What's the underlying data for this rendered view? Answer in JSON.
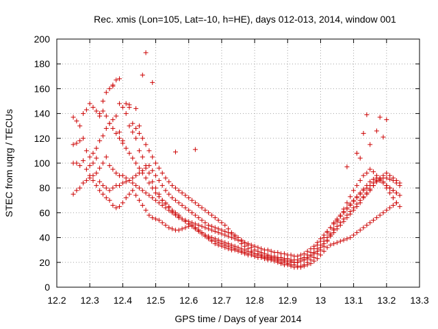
{
  "chart_data": {
    "type": "scatter",
    "title": "Rec. xmis (Lon=105, Lat=-10, h=HE), days 012-013, 2014, window 001",
    "xlabel": "GPS time / Days of year 2014",
    "ylabel": "STEC from uqrg / TECUs",
    "xlim": [
      12.2,
      13.3
    ],
    "ylim": [
      0,
      200
    ],
    "xticks": [
      "12.2",
      "12.3",
      "12.4",
      "12.5",
      "12.6",
      "12.7",
      "12.8",
      "12.9",
      "13",
      "13.1",
      "13.2",
      "13.3"
    ],
    "yticks": [
      "0",
      "20",
      "40",
      "60",
      "80",
      "100",
      "120",
      "140",
      "160",
      "180",
      "200"
    ],
    "grid": true,
    "marker": "+",
    "color": "#cc0000",
    "series": [
      {
        "x": [
          12.25,
          12.26,
          12.27,
          12.28,
          12.29,
          12.3,
          12.31,
          12.32,
          12.33,
          12.34,
          12.35,
          12.36,
          12.37,
          12.38,
          12.39,
          12.4,
          12.41,
          12.42,
          12.43,
          12.44,
          12.45,
          12.46,
          12.47,
          12.48,
          12.49,
          12.5,
          12.51,
          12.52,
          12.53,
          12.54,
          12.55,
          12.56,
          12.57,
          12.58,
          12.59,
          12.6,
          12.61,
          12.62,
          12.63,
          12.64,
          12.65,
          12.66,
          12.67,
          12.68,
          12.69,
          12.7,
          12.71,
          12.72,
          12.73,
          12.74,
          12.75,
          12.76,
          12.77,
          12.78,
          12.79,
          12.8,
          12.81,
          12.82,
          12.83,
          12.84,
          12.85,
          12.86,
          12.87,
          12.88,
          12.89,
          12.9,
          12.91,
          12.92,
          12.93,
          12.94,
          12.95,
          12.96,
          12.97,
          12.98,
          12.99,
          13.0,
          13.01,
          13.02,
          13.03,
          13.04,
          13.05,
          13.06,
          13.07,
          13.08,
          13.09,
          13.1,
          13.11,
          13.12,
          13.13,
          13.14,
          13.15,
          13.16,
          13.17,
          13.18,
          13.19,
          13.2,
          13.21,
          13.22,
          13.23,
          13.24
        ],
        "y": [
          137,
          134,
          130,
          140,
          143,
          148,
          145,
          142,
          138,
          150,
          157,
          160,
          163,
          167,
          148,
          145,
          140,
          130,
          125,
          120,
          110,
          105,
          98,
          92,
          85,
          80,
          75,
          70,
          68,
          65,
          62,
          60,
          58,
          55,
          53,
          51,
          49,
          47,
          45,
          43,
          41,
          39,
          37,
          35,
          34,
          33,
          32,
          31,
          30,
          30,
          29,
          28,
          27,
          26,
          26,
          25,
          24,
          24,
          23,
          23,
          22,
          22,
          21,
          20,
          20,
          19,
          18,
          18,
          17,
          17,
          18,
          20,
          22,
          24,
          27,
          30,
          33,
          37,
          42,
          47,
          53,
          58,
          63,
          68,
          73,
          78,
          82,
          86,
          90,
          92,
          95,
          93,
          90,
          88,
          85,
          82,
          80,
          78,
          76,
          74
        ]
      },
      {
        "x": [
          12.25,
          12.26,
          12.27,
          12.28,
          12.29,
          12.3,
          12.31,
          12.32,
          12.33,
          12.34,
          12.35,
          12.36,
          12.37,
          12.38,
          12.39,
          12.4,
          12.41,
          12.42,
          12.43,
          12.44,
          12.45,
          12.46,
          12.47,
          12.48,
          12.49,
          12.5,
          12.51,
          12.52,
          12.53,
          12.54,
          12.55,
          12.56,
          12.57,
          12.58,
          12.59,
          12.6,
          12.61,
          12.62,
          12.63,
          12.64,
          12.65,
          12.66,
          12.67,
          12.68,
          12.69,
          12.7,
          12.71,
          12.72,
          12.73,
          12.74,
          12.75,
          12.76,
          12.77,
          12.78,
          12.79,
          12.8,
          12.81,
          12.82,
          12.83,
          12.84,
          12.85,
          12.86,
          12.87,
          12.88,
          12.89,
          12.9,
          12.91,
          12.92,
          12.93,
          12.94,
          12.95,
          12.96,
          12.97,
          12.98,
          12.99,
          13.0,
          13.01,
          13.02,
          13.03,
          13.04,
          13.05,
          13.06,
          13.07,
          13.08,
          13.09,
          13.1,
          13.11,
          13.12,
          13.13,
          13.14,
          13.15,
          13.16,
          13.17,
          13.18,
          13.19,
          13.2,
          13.21,
          13.22,
          13.23,
          13.24
        ],
        "y": [
          115,
          116,
          118,
          120,
          110,
          105,
          108,
          112,
          118,
          122,
          128,
          132,
          135,
          138,
          125,
          118,
          112,
          108,
          104,
          100,
          96,
          92,
          88,
          84,
          80,
          76,
          73,
          70,
          67,
          64,
          61,
          59,
          57,
          55,
          53,
          51,
          50,
          48,
          46,
          44,
          42,
          41,
          40,
          39,
          38,
          37,
          36,
          35,
          34,
          33,
          32,
          31,
          30,
          29,
          28,
          27,
          27,
          26,
          25,
          25,
          24,
          24,
          23,
          22,
          22,
          21,
          21,
          20,
          20,
          21,
          22,
          23,
          25,
          27,
          29,
          32,
          35,
          38,
          41,
          44,
          47,
          50,
          53,
          56,
          59,
          62,
          65,
          68,
          72,
          75,
          78,
          82,
          85,
          88,
          90,
          92,
          90,
          88,
          86,
          84
        ]
      },
      {
        "x": [
          12.25,
          12.26,
          12.27,
          12.28,
          12.29,
          12.3,
          12.31,
          12.32,
          12.33,
          12.34,
          12.35,
          12.36,
          12.37,
          12.38,
          12.39,
          12.4,
          12.41,
          12.42,
          12.43,
          12.44,
          12.45,
          12.46,
          12.47,
          12.48,
          12.49,
          12.5,
          12.51,
          12.52,
          12.53,
          12.54,
          12.55,
          12.56,
          12.57,
          12.58,
          12.59,
          12.6,
          12.61,
          12.62,
          12.63,
          12.64,
          12.65,
          12.66,
          12.67,
          12.68,
          12.69,
          12.7,
          12.71,
          12.72,
          12.73,
          12.74,
          12.75,
          12.76,
          12.77,
          12.78,
          12.79,
          12.8,
          12.81,
          12.82,
          12.83,
          12.84,
          12.85,
          12.86,
          12.87,
          12.88,
          12.89,
          12.9,
          12.91,
          12.92,
          12.93,
          12.94,
          12.95,
          12.96,
          12.97,
          12.98,
          12.99,
          13.0,
          13.01,
          13.02,
          13.03,
          13.04,
          13.05,
          13.06,
          13.07,
          13.08,
          13.09,
          13.1,
          13.11,
          13.12,
          13.13,
          13.14,
          13.15,
          13.16,
          13.17,
          13.18,
          13.19,
          13.2,
          13.21,
          13.22,
          13.23,
          13.24
        ],
        "y": [
          100,
          100,
          98,
          102,
          95,
          98,
          100,
          104,
          96,
          100,
          105,
          98,
          95,
          92,
          90,
          90,
          88,
          86,
          84,
          82,
          80,
          78,
          76,
          74,
          72,
          70,
          68,
          66,
          64,
          62,
          60,
          58,
          56,
          55,
          54,
          53,
          52,
          51,
          50,
          49,
          48,
          47,
          46,
          45,
          44,
          43,
          42,
          41,
          40,
          39,
          38,
          37,
          36,
          35,
          34,
          33,
          32,
          31,
          30,
          30,
          29,
          28,
          28,
          27,
          27,
          26,
          26,
          25,
          25,
          26,
          27,
          29,
          31,
          33,
          36,
          39,
          42,
          45,
          48,
          51,
          54,
          57,
          60,
          63,
          66,
          69,
          72,
          75,
          78,
          80,
          82,
          84,
          86,
          87,
          88,
          88,
          87,
          86,
          84,
          82
        ]
      },
      {
        "x": [
          12.25,
          12.26,
          12.27,
          12.28,
          12.29,
          12.3,
          12.31,
          12.32,
          12.33,
          12.34,
          12.35,
          12.36,
          12.37,
          12.38,
          12.39,
          12.4,
          12.41,
          12.42,
          12.43,
          12.44,
          12.45,
          12.46,
          12.47,
          12.48,
          12.49,
          12.5,
          12.51,
          12.52,
          12.53,
          12.54,
          12.55,
          12.56,
          12.57,
          12.58,
          12.59,
          12.6,
          12.61,
          12.62,
          12.63,
          12.64,
          12.65,
          12.66,
          12.67,
          12.68,
          12.69,
          12.7,
          12.71,
          12.72,
          12.73,
          12.74,
          12.75,
          12.76,
          12.77,
          12.78,
          12.79,
          12.8,
          12.81,
          12.82,
          12.83,
          12.84,
          12.85,
          12.86,
          12.87,
          12.88,
          12.89,
          12.9,
          12.91,
          12.92,
          12.93,
          12.94,
          12.95,
          12.96,
          12.97,
          12.98,
          12.99,
          13.0,
          13.01,
          13.02,
          13.03,
          13.04,
          13.05,
          13.06,
          13.07,
          13.08,
          13.09,
          13.1,
          13.11,
          13.12,
          13.13,
          13.14,
          13.15,
          13.16,
          13.17,
          13.18,
          13.19,
          13.2,
          13.21,
          13.22,
          13.23,
          13.24
        ],
        "y": [
          75,
          78,
          80,
          84,
          86,
          88,
          90,
          92,
          85,
          82,
          80,
          78,
          80,
          82,
          82,
          84,
          85,
          86,
          88,
          90,
          92,
          94,
          96,
          98,
          94,
          90,
          86,
          82,
          78,
          75,
          72,
          70,
          68,
          66,
          64,
          62,
          60,
          58,
          56,
          54,
          52,
          50,
          49,
          48,
          47,
          46,
          45,
          44,
          43,
          42,
          40,
          38,
          36,
          34,
          32,
          30,
          29,
          28,
          27,
          26,
          25,
          25,
          24,
          24,
          23,
          23,
          22,
          22,
          22,
          23,
          24,
          26,
          28,
          31,
          34,
          37,
          40,
          44,
          48,
          52,
          55,
          58,
          61,
          64,
          67,
          70,
          73,
          76,
          79,
          82,
          85,
          87,
          88,
          86,
          84,
          80,
          76,
          72,
          68,
          65
        ]
      },
      {
        "x": [
          12.3,
          12.31,
          12.32,
          12.33,
          12.34,
          12.35,
          12.36,
          12.37,
          12.38,
          12.39,
          12.4,
          12.41,
          12.42,
          12.43,
          12.44,
          12.45,
          12.46,
          12.47,
          12.48,
          12.49,
          12.5,
          12.51,
          12.52,
          12.53,
          12.54,
          12.55,
          12.56,
          12.57,
          12.58,
          12.59,
          12.6,
          12.61,
          12.62,
          12.63,
          12.64,
          12.65,
          12.66,
          12.67,
          12.68,
          12.69,
          12.7,
          12.71,
          12.72,
          12.73,
          12.74,
          12.75,
          12.76,
          12.77,
          12.78,
          12.79,
          12.8,
          12.81,
          12.82,
          12.83,
          12.84,
          12.85,
          12.86,
          12.87,
          12.88,
          12.89,
          12.9,
          12.91,
          12.92,
          12.93,
          12.94,
          12.95,
          12.96,
          12.97,
          12.98,
          12.99,
          13.0,
          13.01,
          13.02,
          13.03,
          13.04,
          13.05,
          13.06,
          13.07,
          13.08,
          13.09,
          13.1,
          13.11,
          13.12,
          13.13,
          13.14,
          13.15,
          13.16,
          13.17,
          13.18,
          13.19,
          13.2,
          13.21,
          13.22,
          13.23
        ],
        "y": [
          90,
          86,
          82,
          78,
          75,
          72,
          70,
          66,
          64,
          65,
          68,
          72,
          75,
          78,
          74,
          70,
          66,
          62,
          58,
          56,
          55,
          54,
          52,
          50,
          48,
          47,
          46,
          46,
          47,
          48,
          49,
          50,
          48,
          46,
          44,
          42,
          40,
          38,
          37,
          36,
          35,
          34,
          33,
          32,
          31,
          30,
          29,
          28,
          27,
          26,
          25,
          24,
          24,
          23,
          22,
          22,
          21,
          20,
          19,
          18,
          18,
          17,
          16,
          16,
          16,
          17,
          18,
          19,
          21,
          23,
          26,
          29,
          32,
          34,
          35,
          36,
          37,
          38,
          39,
          40,
          42,
          44,
          46,
          48,
          50,
          52,
          54,
          56,
          58,
          60,
          62,
          64,
          66,
          68
        ]
      },
      {
        "x": [
          12.33,
          12.34,
          12.35,
          12.36,
          12.37,
          12.38,
          12.39,
          12.4,
          12.41,
          12.42,
          12.43,
          12.44,
          12.45,
          12.46,
          12.47,
          12.48,
          12.49,
          12.5,
          12.51,
          12.52,
          12.53,
          12.54,
          12.55,
          12.56,
          12.57,
          12.58,
          12.59,
          12.6,
          12.61,
          12.62,
          12.63,
          12.64,
          12.65,
          12.66,
          12.67,
          12.68,
          12.69,
          12.7,
          12.71,
          12.72,
          12.73,
          12.74,
          12.75,
          12.76,
          12.77,
          12.78,
          12.79,
          12.8,
          12.81,
          12.82,
          12.83,
          12.84,
          12.85,
          12.86,
          12.87,
          12.88,
          12.89,
          12.9,
          12.91,
          12.92,
          12.93,
          12.94,
          12.95,
          12.96,
          12.97,
          12.98,
          12.99,
          13.0,
          13.01,
          13.02,
          13.03,
          13.04,
          13.05,
          13.06,
          13.07,
          13.08,
          13.09,
          13.1,
          13.11,
          13.12,
          13.13,
          13.14,
          13.15,
          13.16,
          13.17,
          13.18,
          13.19,
          13.2,
          13.21,
          13.22,
          13.23
        ],
        "y": [
          140,
          142,
          138,
          132,
          128,
          124,
          120,
          116,
          148,
          145,
          132,
          128,
          124,
          120,
          115,
          110,
          105,
          100,
          96,
          92,
          88,
          85,
          82,
          80,
          78,
          76,
          74,
          72,
          70,
          68,
          66,
          64,
          62,
          60,
          58,
          56,
          54,
          52,
          50,
          47,
          44,
          41,
          38,
          35,
          33,
          31,
          29,
          27,
          26,
          25,
          24,
          24,
          23,
          23,
          22,
          22,
          21,
          21,
          20,
          20,
          20,
          21,
          22,
          24,
          26,
          28,
          31,
          34,
          37,
          40,
          43,
          46,
          49,
          52,
          55,
          58,
          61,
          64,
          67,
          70,
          73,
          76,
          79,
          82,
          85,
          86,
          84,
          82,
          80,
          78,
          76
        ]
      },
      {
        "x": [
          12.44,
          12.46,
          12.47,
          12.49,
          12.56,
          12.62,
          12.37,
          12.39,
          12.42,
          12.45,
          13.08,
          13.11,
          13.13,
          13.14,
          13.17,
          13.18,
          13.19,
          13.2,
          13.15,
          13.12
        ],
        "y": [
          144,
          171,
          189,
          165,
          109,
          111,
          162,
          168,
          147,
          130,
          97,
          108,
          124,
          139,
          126,
          137,
          121,
          135,
          115,
          104
        ]
      }
    ]
  }
}
